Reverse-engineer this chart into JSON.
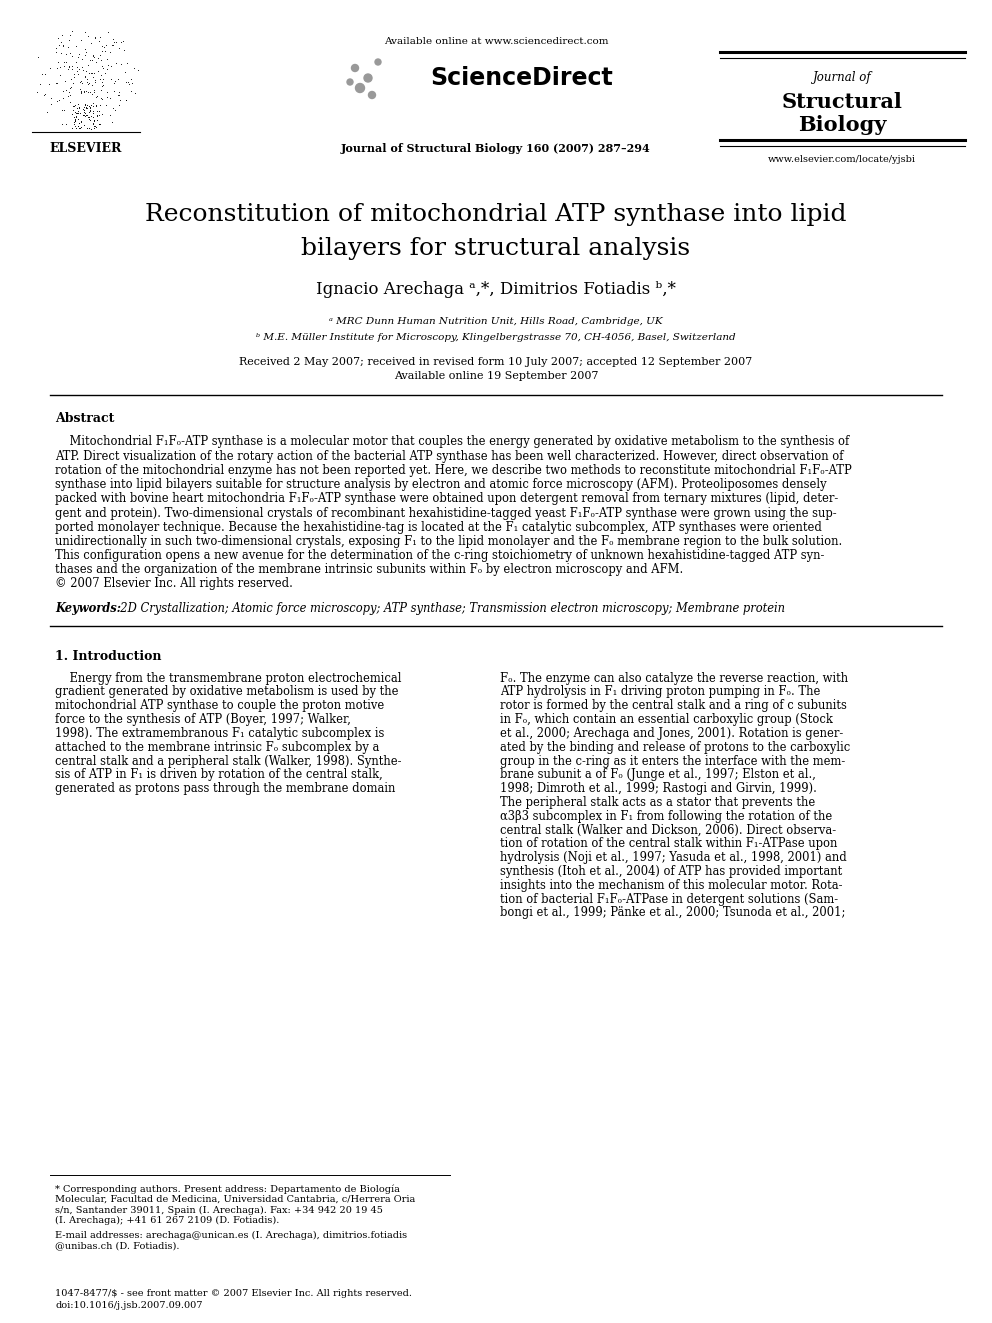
{
  "bg_color": "#ffffff",
  "title_line1": "Reconstitution of mitochondrial ATP synthase into lipid",
  "title_line2": "bilayers for structural analysis",
  "authors": "Ignacio Arechaga ᵃ,*, Dimitrios Fotiadis ᵇ,*",
  "affil_a": "ᵃ MRC Dunn Human Nutrition Unit, Hills Road, Cambridge, UK",
  "affil_b": "ᵇ M.E. Müller Institute for Microscopy, Klingelbergstrasse 70, CH-4056, Basel, Switzerland",
  "received": "Received 2 May 2007; received in revised form 10 July 2007; accepted 12 September 2007",
  "available": "Available online 19 September 2007",
  "header_available": "Available online at www.sciencedirect.com",
  "journal_line": "Journal of Structural Biology 160 (2007) 287–294",
  "journal_name_line1": "Journal of",
  "journal_name_line2": "Structural",
  "journal_name_line3": "Biology",
  "url": "www.elsevier.com/locate/yjsbi",
  "elsevier_text": "ELSEVIER",
  "abstract_heading": "Abstract",
  "keywords_bold": "Keywords:",
  "keywords_rest": "  2D Crystallization; Atomic force microscopy; ATP synthase; Transmission electron microscopy; Membrane protein",
  "intro_heading": "1. Introduction",
  "issn_line": "1047-8477/$ - see front matter © 2007 Elsevier Inc. All rights reserved.",
  "doi_line": "doi:10.1016/j.jsb.2007.09.007"
}
